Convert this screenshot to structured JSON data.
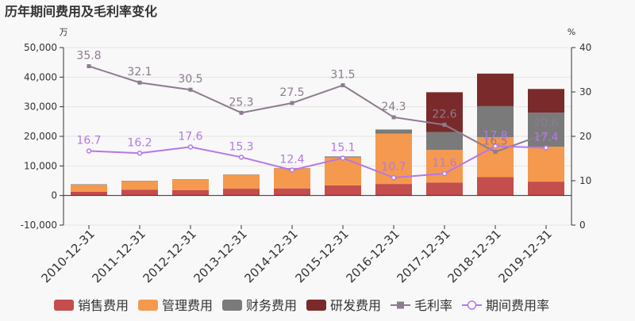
{
  "chart_data": {
    "type": "bar",
    "title": "历年期间费用及毛利率变化",
    "left_unit": "万",
    "right_unit": "%",
    "categories": [
      "2010-12-31",
      "2011-12-31",
      "2012-12-31",
      "2013-12-31",
      "2014-12-31",
      "2015-12-31",
      "2016-12-31",
      "2017-12-31",
      "2018-12-31",
      "2019-12-31"
    ],
    "ylim": [
      -10000,
      50000
    ],
    "yticks": [
      -10000,
      0,
      10000,
      20000,
      30000,
      40000,
      50000
    ],
    "ytick_labels": [
      "-10,000",
      "0",
      "10,000",
      "20,000",
      "30,000",
      "40,000",
      "50,000"
    ],
    "y2lim": [
      0,
      40
    ],
    "y2ticks": [
      0,
      10,
      20,
      30,
      40
    ],
    "stacked": true,
    "bar_series": [
      {
        "name": "销售费用",
        "color": "#c44d4d",
        "values": [
          1300,
          2000,
          1800,
          2300,
          2400,
          3400,
          3900,
          4400,
          6200,
          4700
        ]
      },
      {
        "name": "管理费用",
        "color": "#f5994e",
        "values": [
          2300,
          2900,
          3600,
          4700,
          6800,
          9500,
          17000,
          11000,
          13500,
          11800
        ]
      },
      {
        "name": "财务费用",
        "color": "#7a7a7a",
        "values": [
          200,
          100,
          100,
          100,
          100,
          300,
          1400,
          6000,
          10500,
          11500
        ]
      },
      {
        "name": "研发费用",
        "color": "#7a2a2a",
        "values": [
          0,
          0,
          0,
          0,
          0,
          0,
          0,
          13500,
          11000,
          8000
        ]
      }
    ],
    "line_series": [
      {
        "name": "毛利率",
        "color": "#8e7b8e",
        "marker": "square",
        "values": [
          35.8,
          32.1,
          30.5,
          25.3,
          27.5,
          31.5,
          24.3,
          22.6,
          16.5,
          20.6
        ],
        "labels": [
          "35.8",
          "32.1",
          "30.5",
          "25.3",
          "27.5",
          "31.5",
          "24.3",
          "22.6",
          "16.5",
          "20.6"
        ]
      },
      {
        "name": "期间费用率",
        "color": "#b478e6",
        "marker": "circle",
        "values": [
          16.7,
          16.2,
          17.6,
          15.3,
          12.4,
          15.1,
          10.7,
          11.6,
          17.8,
          17.4
        ],
        "labels": [
          "16.7",
          "16.2",
          "17.6",
          "15.3",
          "12.4",
          "15.1",
          "10.7",
          "11.6",
          "17.8",
          "17.4"
        ]
      }
    ],
    "legend_position": "bottom"
  }
}
